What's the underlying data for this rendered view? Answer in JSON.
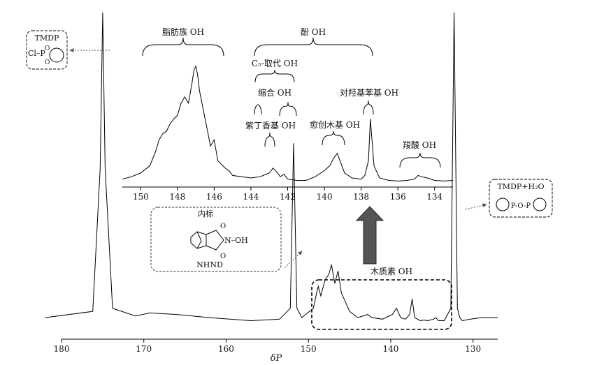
{
  "chart_data": [
    {
      "type": "line",
      "xlabel": "δP",
      "xlim": [
        180.0,
        127.0
      ],
      "x_ticks": [
        "180",
        "170",
        "160",
        "150",
        "140",
        "130"
      ],
      "series": [
        {
          "x": [
            182,
            176.2,
            175.3,
            175.0,
            174.7,
            173.8,
            171,
            169.3,
            166,
            162,
            157,
            153.5,
            152.2,
            151.8,
            151.4,
            150.8,
            149.4,
            149.0,
            148.8,
            148.5,
            148.0,
            147.5,
            147.2,
            146.8,
            146.4,
            146.0,
            145.5,
            145,
            144,
            142.8,
            142.3,
            141,
            139.8,
            139.3,
            138.8,
            138.2,
            137.7,
            137.4,
            137.1,
            136.4,
            136,
            135.5,
            134.8,
            134.5,
            134.2,
            133.5,
            132.7,
            132.3,
            131.9,
            131.6,
            131.3,
            130.3,
            129,
            127
          ],
          "y": [
            0.02,
            0.04,
            0.5,
            1.0,
            0.5,
            0.05,
            0.025,
            0.035,
            0.03,
            0.02,
            0.01,
            0.015,
            0.05,
            0.58,
            0.05,
            0.02,
            0.05,
            0.1,
            0.12,
            0.09,
            0.14,
            0.16,
            0.19,
            0.13,
            0.17,
            0.1,
            0.07,
            0.04,
            0.02,
            0.03,
            0.02,
            0.015,
            0.03,
            0.05,
            0.02,
            0.015,
            0.03,
            0.08,
            0.02,
            0.01,
            0.012,
            0.01,
            0.015,
            0.02,
            0.01,
            0.01,
            0.05,
            1.0,
            0.05,
            0.02,
            0.01,
            0.015,
            0.02,
            0.02
          ]
        }
      ]
    },
    {
      "type": "line",
      "xlim": [
        151.0,
        133.0
      ],
      "x_ticks": [
        "150",
        "148",
        "146",
        "144",
        "142",
        "140",
        "138",
        "136",
        "134"
      ],
      "series": [
        {
          "x": [
            151,
            150.5,
            150,
            149.5,
            149.2,
            149.0,
            148.8,
            148.6,
            148.4,
            148.2,
            148.0,
            147.8,
            147.6,
            147.4,
            147.2,
            147.1,
            147.0,
            146.9,
            146.8,
            146.6,
            146.4,
            146.2,
            146.0,
            145.8,
            145.6,
            145.4,
            145.2,
            145.0,
            144.5,
            144,
            143.5,
            143.0,
            142.8,
            142.6,
            142.4,
            142.2,
            142.0,
            141.5,
            141,
            140.5,
            140.0,
            139.7,
            139.5,
            139.3,
            139.1,
            138.9,
            138.5,
            138.0,
            137.8,
            137.6,
            137.5,
            137.3,
            137.0,
            136.5,
            136,
            135.5,
            135.1,
            134.9,
            134.7,
            134.4,
            134,
            133.5,
            133
          ],
          "y": [
            0.03,
            0.05,
            0.08,
            0.14,
            0.25,
            0.35,
            0.4,
            0.42,
            0.48,
            0.52,
            0.55,
            0.65,
            0.7,
            0.65,
            0.82,
            0.92,
            0.95,
            0.88,
            0.75,
            0.6,
            0.45,
            0.3,
            0.35,
            0.18,
            0.15,
            0.12,
            0.1,
            0.06,
            0.05,
            0.04,
            0.05,
            0.08,
            0.12,
            0.09,
            0.05,
            0.07,
            0.03,
            0.02,
            0.02,
            0.05,
            0.1,
            0.14,
            0.2,
            0.24,
            0.16,
            0.08,
            0.04,
            0.03,
            0.06,
            0.18,
            0.52,
            0.14,
            0.04,
            0.02,
            0.015,
            0.02,
            0.03,
            0.06,
            0.05,
            0.04,
            0.02,
            0.015,
            0.02
          ]
        }
      ]
    }
  ],
  "annotations": {
    "top_left_box": {
      "line1": "TMDP",
      "line2": "Cl–P"
    },
    "right_box": {
      "line1": "TMDP+H₂O",
      "chem": "P-O-P"
    },
    "internal_std_box": {
      "title": "内标",
      "oh": "N–OH",
      "name": "NHND"
    },
    "lignin_box": {
      "label": "木质素 OH"
    },
    "brace_labels": {
      "aliphatic": "脂肪族 OH",
      "phenolic": "酚 OH",
      "c5": "C₅-取代 OH",
      "condensed": "缩合 OH",
      "syringyl": "紫丁香基 OH",
      "guaiacyl": "愈创木基 OH",
      "p_hydroxyphenyl": "对羟基苯基 OH",
      "carboxylic": "羧酸 OH"
    }
  }
}
